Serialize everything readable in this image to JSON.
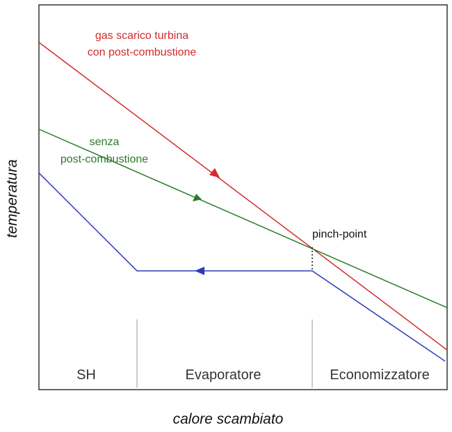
{
  "diagram": {
    "xlabel": "calore scambiato",
    "ylabel": "temperatura",
    "colors": {
      "red": "#d42a2a",
      "green": "#2a7a2a",
      "blue": "#2a3ab8",
      "frame": "#333333",
      "divider": "#999999"
    },
    "labels": {
      "red_line_1": "gas scarico turbina",
      "red_line_2": "con post-combustione",
      "green_line_1": "senza",
      "green_line_2": "post-combustione",
      "pinch": "pinch-point"
    },
    "regions": [
      "SH",
      "Evaporatore",
      "Economizzatore"
    ]
  }
}
